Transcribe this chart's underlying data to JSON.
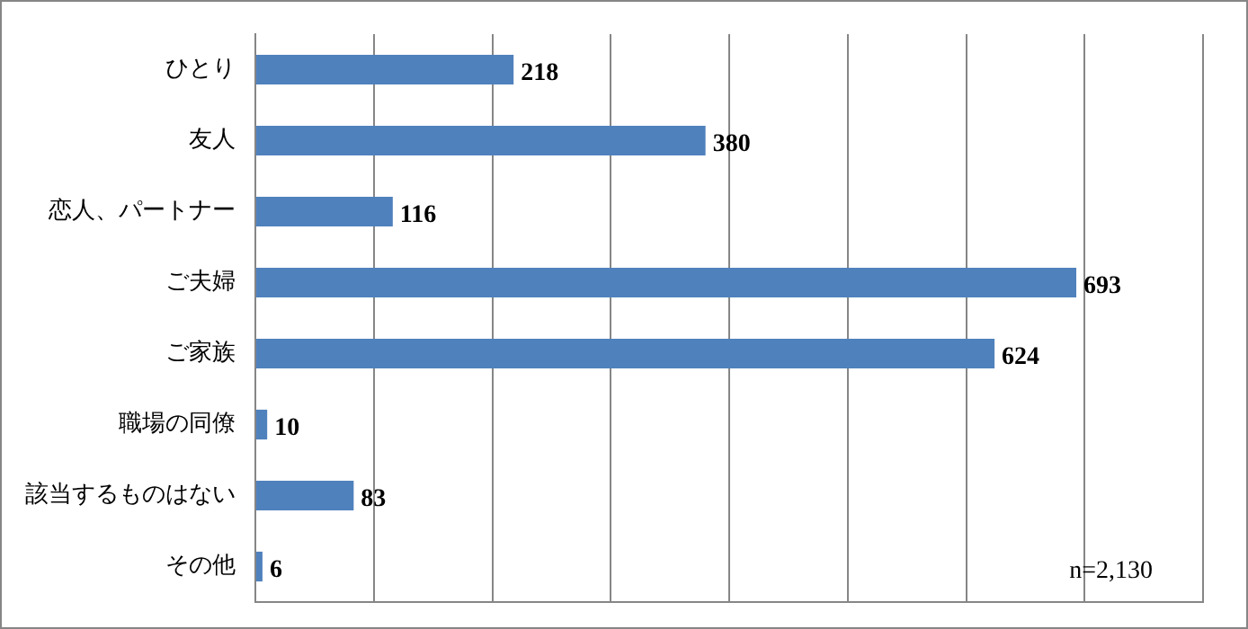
{
  "chart_data": {
    "type": "bar",
    "orientation": "horizontal",
    "categories": [
      "ひとり",
      "友人",
      "恋人、パートナー",
      "ご夫婦",
      "ご家族",
      "職場の同僚",
      "該当するものはない",
      "その他"
    ],
    "values": [
      218,
      380,
      116,
      693,
      624,
      10,
      83,
      6
    ],
    "color": "#4f81bd",
    "xlim": [
      0,
      800
    ],
    "xticks": [
      {
        "value": 0,
        "label": null
      },
      {
        "value": 100,
        "label": null
      },
      {
        "value": 200,
        "label": null
      },
      {
        "value": 300,
        "label": null
      },
      {
        "value": 400,
        "label": null
      },
      {
        "value": 500,
        "label": null
      },
      {
        "value": 600,
        "label": null
      },
      {
        "value": 700,
        "label": null
      },
      {
        "value": 800,
        "label": null
      }
    ],
    "tick_labels": "y",
    "grid": "x",
    "legend": false,
    "data_labels": true,
    "annotations": [
      "n=2,130"
    ]
  }
}
